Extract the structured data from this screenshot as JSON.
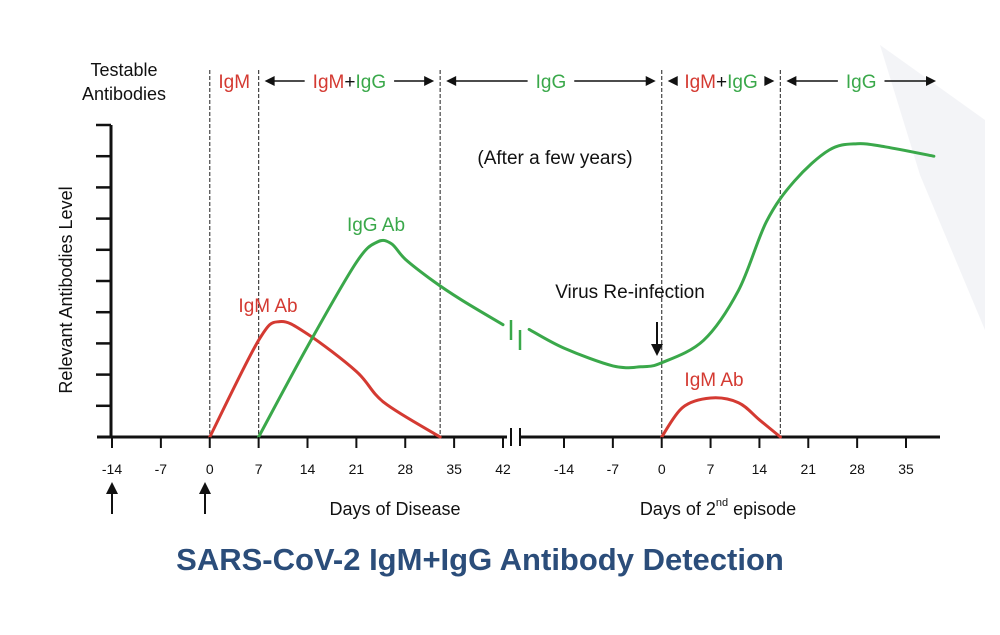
{
  "colors": {
    "igm": "#d43a32",
    "igg": "#3aa84a",
    "axis": "#111111",
    "title": "#2b4d7a"
  },
  "title": "SARS-CoV-2 IgM+IgG Antibody Detection",
  "y_axis_heading": [
    "Testable",
    "Antibodies"
  ],
  "ylabel": "Relevant Antibodies Level",
  "x_axis_labels": {
    "first": "Days of Disease",
    "second_prefix": "Days of 2",
    "second_sup": "nd",
    "second_suffix": " episode"
  },
  "phases": [
    {
      "segments": [
        {
          "text": "IgM",
          "color": "igm"
        }
      ]
    },
    {
      "segments": [
        {
          "text": "IgM",
          "color": "igm"
        },
        {
          "text": "+",
          "color": "axis"
        },
        {
          "text": "IgG",
          "color": "igg"
        }
      ]
    },
    {
      "segments": [
        {
          "text": "IgG",
          "color": "igg"
        }
      ]
    },
    {
      "segments": [
        {
          "text": "IgM",
          "color": "igm"
        },
        {
          "text": "+",
          "color": "axis"
        },
        {
          "text": "IgG",
          "color": "igg"
        }
      ]
    },
    {
      "segments": [
        {
          "text": "IgG",
          "color": "igg"
        }
      ]
    }
  ],
  "annotations": {
    "after_years": "(After a few years)",
    "reinfection": "Virus Re-infection",
    "igg_ab": "IgG Ab",
    "igm_ab_1": "IgM Ab",
    "igm_ab_2": "IgM Ab"
  },
  "chart_data": {
    "type": "line",
    "title": "SARS-CoV-2 IgM+IgG Antibody Detection",
    "ylabel": "Relevant Antibodies Level",
    "ylim": [
      0,
      10
    ],
    "yticks": 10,
    "axes": [
      {
        "xlabel": "Days of Disease",
        "xlim": [
          -16,
          43
        ],
        "ticks": [
          -14,
          -7,
          0,
          7,
          14,
          21,
          28,
          35,
          42
        ]
      },
      {
        "xlabel": "Days of 2nd episode",
        "xlim": [
          -20,
          40
        ],
        "ticks": [
          -14,
          -7,
          0,
          7,
          14,
          21,
          28,
          35
        ]
      }
    ],
    "phase_boundaries": {
      "first": [
        0,
        7,
        33
      ],
      "second": [
        0,
        17
      ]
    },
    "series": [
      {
        "name": "IgM Ab",
        "color": "igm",
        "axis": 0,
        "points": [
          [
            0,
            0
          ],
          [
            7,
            3.1
          ],
          [
            10,
            3.7
          ],
          [
            14,
            3.3
          ],
          [
            21,
            2.1
          ],
          [
            25,
            1.1
          ],
          [
            33,
            0
          ]
        ]
      },
      {
        "name": "IgG Ab",
        "color": "igg",
        "axis": 0,
        "points": [
          [
            7,
            0
          ],
          [
            14,
            2.9
          ],
          [
            21,
            5.6
          ],
          [
            24,
            6.25
          ],
          [
            26,
            6.2
          ],
          [
            28,
            5.7
          ],
          [
            32,
            5.0
          ],
          [
            36,
            4.4
          ],
          [
            42,
            3.6
          ]
        ]
      },
      {
        "name": "IgG Ab",
        "color": "igg",
        "axis": 1,
        "points": [
          [
            -19,
            3.45
          ],
          [
            -14,
            2.85
          ],
          [
            -7,
            2.28
          ],
          [
            -3,
            2.25
          ],
          [
            0,
            2.38
          ],
          [
            6,
            3.1
          ],
          [
            11,
            4.7
          ],
          [
            15,
            6.9
          ],
          [
            19,
            8.2
          ],
          [
            24,
            9.2
          ],
          [
            28,
            9.4
          ],
          [
            32,
            9.3
          ],
          [
            39,
            9.0
          ]
        ]
      },
      {
        "name": "IgM Ab",
        "color": "igm",
        "axis": 1,
        "points": [
          [
            0,
            0
          ],
          [
            3,
            0.95
          ],
          [
            7,
            1.25
          ],
          [
            11,
            1.1
          ],
          [
            14,
            0.55
          ],
          [
            17,
            0
          ]
        ]
      }
    ]
  }
}
